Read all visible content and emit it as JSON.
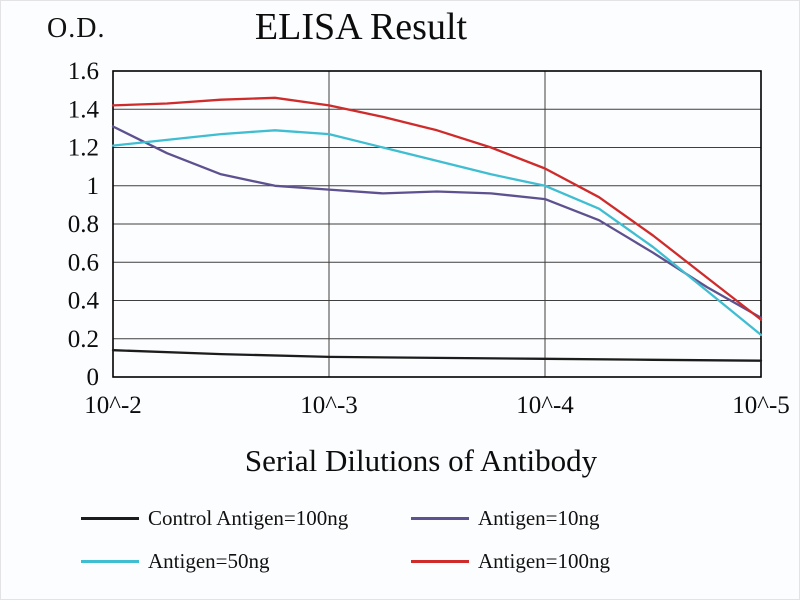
{
  "chart_data": {
    "type": "line",
    "title": "ELISA Result",
    "ylabel": "O.D.",
    "xlabel": "Serial Dilutions of Antibody",
    "x_scale": "serial-dilution-log",
    "x_tick_labels": [
      "10^-2",
      "10^-3",
      "10^-4",
      "10^-5"
    ],
    "y_ticks": [
      0,
      0.2,
      0.4,
      0.6,
      0.8,
      1,
      1.2,
      1.4,
      1.6
    ],
    "y_tick_labels": [
      "0",
      "0.2",
      "0.4",
      "0.6",
      "0.8",
      "1",
      "1.2",
      "1.4",
      "1.6"
    ],
    "ylim": [
      0,
      1.6
    ],
    "grid": true,
    "legend_position": "bottom",
    "axis_color": "#000000",
    "grid_color": "#3f3f3f",
    "series": [
      {
        "name": "Control Antigen=100ng",
        "color": "#1c1c1c",
        "x": [
          0,
          0.5,
          1,
          1.5,
          2,
          2.5,
          3
        ],
        "values": [
          0.14,
          0.12,
          0.105,
          0.1,
          0.095,
          0.09,
          0.085
        ]
      },
      {
        "name": "Antigen=10ng",
        "color": "#5e518f",
        "x": [
          0,
          0.25,
          0.5,
          0.75,
          1,
          1.25,
          1.5,
          1.75,
          2,
          2.25,
          2.5,
          2.75,
          3
        ],
        "values": [
          1.31,
          1.17,
          1.06,
          1.0,
          0.98,
          0.96,
          0.97,
          0.96,
          0.93,
          0.82,
          0.65,
          0.47,
          0.31
        ]
      },
      {
        "name": "Antigen=50ng",
        "color": "#3fbdd1",
        "x": [
          0,
          0.25,
          0.5,
          0.75,
          1,
          1.25,
          1.5,
          1.75,
          2,
          2.25,
          2.5,
          2.75,
          3
        ],
        "values": [
          1.21,
          1.24,
          1.27,
          1.29,
          1.27,
          1.2,
          1.13,
          1.06,
          1.0,
          0.88,
          0.68,
          0.45,
          0.22
        ]
      },
      {
        "name": "Antigen=100ng",
        "color": "#cf2b2b",
        "x": [
          0,
          0.25,
          0.5,
          0.75,
          1,
          1.25,
          1.5,
          1.75,
          2,
          2.25,
          2.5,
          2.75,
          3
        ],
        "values": [
          1.42,
          1.43,
          1.45,
          1.46,
          1.42,
          1.36,
          1.29,
          1.2,
          1.09,
          0.94,
          0.74,
          0.52,
          0.3
        ]
      }
    ]
  }
}
